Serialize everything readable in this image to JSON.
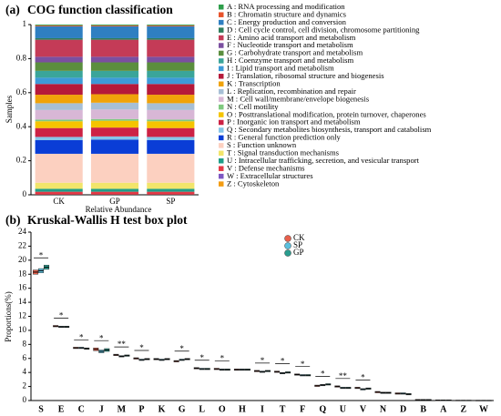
{
  "chart_data": [
    {
      "type": "stacked_bar",
      "label": "(a)",
      "title": "COG function classification",
      "categories": [
        "CK",
        "GP",
        "SP"
      ],
      "x_label": "Relative Abundance",
      "y_label": "Samples",
      "ylim": [
        0,
        1
      ],
      "yticks": [
        0,
        0.2,
        0.4,
        0.6,
        0.8,
        1
      ],
      "series": [
        {
          "name": "A : RNA processing and modification",
          "color": "#2e9e4a",
          "values": [
            0.005,
            0.005,
            0.005
          ]
        },
        {
          "name": "B : Chromatin structure and dynamics",
          "color": "#e8532b",
          "values": [
            0.005,
            0.005,
            0.005
          ]
        },
        {
          "name": "C : Energy production and conversion",
          "color": "#2f7fc1",
          "values": [
            0.07,
            0.07,
            0.07
          ]
        },
        {
          "name": "D : Cell cycle control, cell division, chromosome partitioning",
          "color": "#2e7d5b",
          "values": [
            0.009,
            0.009,
            0.009
          ]
        },
        {
          "name": "E : Amino acid transport and metabolism",
          "color": "#c43b57",
          "values": [
            0.1,
            0.1,
            0.1
          ]
        },
        {
          "name": "F : Nucleotide transport and metabolism",
          "color": "#7b4fa0",
          "values": [
            0.033,
            0.033,
            0.033
          ]
        },
        {
          "name": "G : Carbohydrate transport and metabolism",
          "color": "#5b8e3e",
          "values": [
            0.05,
            0.05,
            0.05
          ]
        },
        {
          "name": "H : Coenzyme transport and metabolism",
          "color": "#3aa59a",
          "values": [
            0.04,
            0.04,
            0.04
          ]
        },
        {
          "name": "I : Lipid transport and metabolism",
          "color": "#3d9ad8",
          "values": [
            0.037,
            0.037,
            0.037
          ]
        },
        {
          "name": "J : Translation, ribosomal structure and biogenesis",
          "color": "#b5193a",
          "values": [
            0.063,
            0.06,
            0.063
          ]
        },
        {
          "name": "K : Transcription",
          "color": "#f0a30a",
          "values": [
            0.05,
            0.05,
            0.05
          ]
        },
        {
          "name": "L : Replication, recombination and repair",
          "color": "#a7bfd6",
          "values": [
            0.04,
            0.04,
            0.04
          ]
        },
        {
          "name": "M : Cell wall/membrane/envelope biogenesis",
          "color": "#d8b7d6",
          "values": [
            0.056,
            0.056,
            0.056
          ]
        },
        {
          "name": "N : Cell motility",
          "color": "#7fc97f",
          "values": [
            0.01,
            0.01,
            0.01
          ]
        },
        {
          "name": "O : Posttranslational modification, protein turnover, chaperones",
          "color": "#f5c400",
          "values": [
            0.04,
            0.04,
            0.04
          ]
        },
        {
          "name": "P : Inorganic ion transport and metabolism",
          "color": "#cc2244",
          "values": [
            0.052,
            0.052,
            0.052
          ]
        },
        {
          "name": "Q : Secondary metabolites biosynthesis, transport and catabolism",
          "color": "#86c5e8",
          "values": [
            0.019,
            0.019,
            0.019
          ]
        },
        {
          "name": "R : General function prediction only",
          "color": "#0a3dd6",
          "values": [
            0.08,
            0.083,
            0.08
          ]
        },
        {
          "name": "S : Function unknown",
          "color": "#fcd0c0",
          "values": [
            0.17,
            0.17,
            0.17
          ]
        },
        {
          "name": "T : Signal transduction mechanisms",
          "color": "#f2e56b",
          "values": [
            0.036,
            0.036,
            0.036
          ]
        },
        {
          "name": "U : Intracellular trafficking, secretion, and vesicular transport",
          "color": "#1f9e89",
          "values": [
            0.017,
            0.017,
            0.017
          ]
        },
        {
          "name": "V : Defense mechanisms",
          "color": "#e63946",
          "values": [
            0.016,
            0.016,
            0.016
          ]
        },
        {
          "name": "W : Extracellular structures",
          "color": "#7e57c2",
          "values": [
            0.001,
            0.001,
            0.001
          ]
        },
        {
          "name": "Z : Cytoskeleton",
          "color": "#f39c12",
          "values": [
            0.001,
            0.001,
            0.001
          ]
        }
      ]
    },
    {
      "type": "box",
      "label": "(b)",
      "title": "Kruskal-Wallis H test box plot",
      "categories": [
        "S",
        "E",
        "C",
        "J",
        "M",
        "P",
        "K",
        "G",
        "L",
        "O",
        "H",
        "I",
        "T",
        "F",
        "Q",
        "U",
        "V",
        "N",
        "D",
        "B",
        "A",
        "Z",
        "W"
      ],
      "y_label": "Proportions(%)",
      "ylim": [
        0,
        24
      ],
      "yticks": [
        0,
        2,
        4,
        6,
        8,
        10,
        12,
        14,
        16,
        18,
        20,
        22,
        24
      ],
      "significance": [
        "*",
        "*",
        "*",
        "*",
        "**",
        "*",
        null,
        "*",
        "*",
        "*",
        null,
        "*",
        "*",
        "*",
        "*",
        "**",
        "*",
        null,
        null,
        null,
        null,
        null,
        null
      ],
      "series": [
        {
          "name": "CK",
          "color": "#e8604c",
          "values": [
            18.3,
            10.6,
            7.5,
            7.3,
            6.5,
            6.0,
            5.9,
            5.6,
            4.6,
            4.5,
            4.4,
            4.2,
            4.1,
            3.7,
            2.1,
            2.0,
            1.8,
            1.2,
            1.0,
            0.1,
            0.05,
            0.02,
            0.01
          ],
          "q1": [
            18.0,
            10.5,
            7.4,
            7.1,
            6.4,
            5.9,
            5.8,
            5.5,
            4.5,
            4.4,
            4.3,
            4.1,
            4.0,
            3.6,
            2.0,
            1.9,
            1.7,
            1.1,
            0.9,
            0.05,
            0.03,
            0.01,
            0.0
          ],
          "q3": [
            18.6,
            10.7,
            7.6,
            7.5,
            6.6,
            6.1,
            6.0,
            5.7,
            4.7,
            4.6,
            4.5,
            4.3,
            4.2,
            3.8,
            2.2,
            2.1,
            1.9,
            1.3,
            1.1,
            0.15,
            0.07,
            0.03,
            0.02
          ]
        },
        {
          "name": "SP",
          "color": "#5bc0de",
          "values": [
            18.5,
            10.5,
            7.5,
            7.0,
            6.3,
            5.8,
            5.8,
            5.8,
            4.5,
            4.4,
            4.4,
            4.1,
            3.9,
            3.6,
            2.2,
            1.8,
            1.6,
            1.1,
            1.0,
            0.1,
            0.05,
            0.02,
            0.01
          ],
          "q1": [
            18.2,
            10.4,
            7.4,
            6.8,
            6.2,
            5.7,
            5.7,
            5.7,
            4.4,
            4.3,
            4.3,
            4.0,
            3.8,
            3.5,
            2.1,
            1.7,
            1.5,
            1.0,
            0.9,
            0.05,
            0.03,
            0.01,
            0.0
          ],
          "q3": [
            18.8,
            10.6,
            7.6,
            7.2,
            6.4,
            5.9,
            5.9,
            5.9,
            4.6,
            4.5,
            4.5,
            4.2,
            4.0,
            3.7,
            2.3,
            1.9,
            1.7,
            1.2,
            1.1,
            0.15,
            0.07,
            0.03,
            0.02
          ]
        },
        {
          "name": "GP",
          "color": "#2a9d8f",
          "values": [
            19.0,
            10.5,
            7.4,
            7.2,
            6.4,
            5.9,
            5.9,
            5.9,
            4.5,
            4.4,
            4.4,
            4.2,
            4.0,
            3.6,
            2.3,
            1.8,
            1.7,
            1.1,
            0.9,
            0.1,
            0.05,
            0.02,
            0.01
          ],
          "q1": [
            18.7,
            10.4,
            7.3,
            7.0,
            6.3,
            5.8,
            5.8,
            5.8,
            4.4,
            4.3,
            4.3,
            4.1,
            3.9,
            3.5,
            2.2,
            1.7,
            1.6,
            1.0,
            0.8,
            0.05,
            0.03,
            0.01,
            0.0
          ],
          "q3": [
            19.3,
            10.6,
            7.5,
            7.4,
            6.5,
            6.0,
            6.0,
            6.0,
            4.6,
            4.5,
            4.5,
            4.3,
            4.1,
            3.7,
            2.4,
            1.9,
            1.8,
            1.2,
            1.0,
            0.15,
            0.07,
            0.03,
            0.02
          ]
        }
      ]
    }
  ]
}
